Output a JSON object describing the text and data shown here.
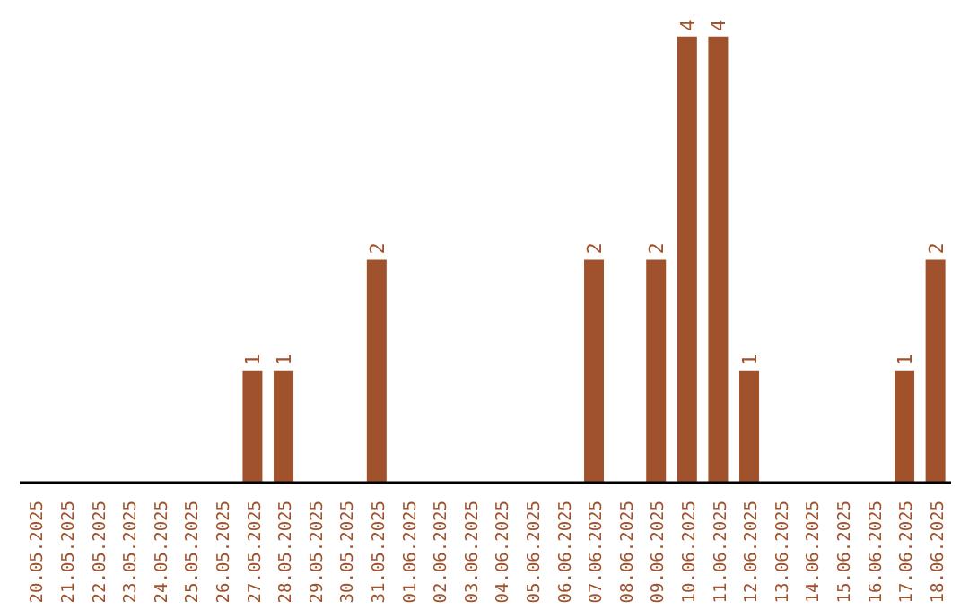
{
  "chart_data": {
    "type": "bar",
    "categories": [
      "20.05.2025",
      "21.05.2025",
      "22.05.2025",
      "23.05.2025",
      "24.05.2025",
      "25.05.2025",
      "26.05.2025",
      "27.05.2025",
      "28.05.2025",
      "29.05.2025",
      "30.05.2025",
      "31.05.2025",
      "01.06.2025",
      "02.06.2025",
      "03.06.2025",
      "04.06.2025",
      "05.06.2025",
      "06.06.2025",
      "07.06.2025",
      "08.06.2025",
      "09.06.2025",
      "10.06.2025",
      "11.06.2025",
      "12.06.2025",
      "13.06.2025",
      "14.06.2025",
      "15.06.2025",
      "16.06.2025",
      "17.06.2025",
      "18.06.2025"
    ],
    "values": [
      0,
      0,
      0,
      0,
      0,
      0,
      0,
      1,
      1,
      0,
      0,
      2,
      0,
      0,
      0,
      0,
      0,
      0,
      2,
      0,
      2,
      4,
      4,
      1,
      0,
      0,
      0,
      0,
      1,
      2
    ],
    "value_labels": [
      null,
      null,
      null,
      null,
      null,
      null,
      null,
      "1",
      "1",
      null,
      null,
      "2",
      null,
      null,
      null,
      null,
      null,
      null,
      "2",
      null,
      "2",
      "4",
      "4",
      "1",
      null,
      null,
      null,
      null,
      "1",
      "2"
    ],
    "color": "#a0522d",
    "tick_labels": "x"
  }
}
